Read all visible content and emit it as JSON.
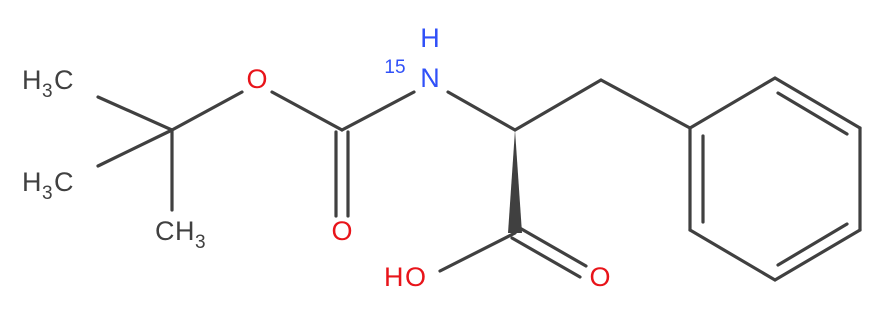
{
  "atoms": [
    {
      "parts": [
        "H",
        "3",
        "C"
      ]
    },
    {
      "parts": [
        "H",
        "3",
        "C"
      ]
    },
    {
      "parts": [
        "C",
        "H",
        "3"
      ]
    },
    {
      "parts": [
        "O"
      ]
    },
    {
      "parts": [
        "O"
      ]
    },
    {
      "parts": [
        "15",
        "H",
        "N"
      ]
    },
    {
      "parts": [
        "H",
        "O"
      ]
    },
    {
      "parts": [
        "O"
      ]
    }
  ]
}
